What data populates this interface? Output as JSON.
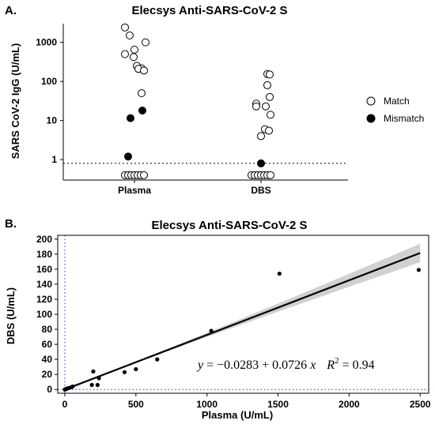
{
  "chart_data": [
    {
      "panel": "A.",
      "type": "scatter",
      "title": "Elecsys Anti-SARS-CoV-2 S",
      "xlabel": "",
      "ylabel": "SARS CoV-2 IgG (U/mL)",
      "yscale": "log",
      "ylim": [
        0.3,
        3000
      ],
      "categories": [
        "Plasma",
        "DBS"
      ],
      "ytick_labels": [
        "1",
        "10",
        "100",
        "1000"
      ],
      "ytick_values": [
        1,
        10,
        100,
        1000
      ],
      "hline": 0.8,
      "legend": {
        "placement": "right",
        "entries": [
          "Match",
          "Mismatch"
        ]
      },
      "series": [
        {
          "name": "Match",
          "points": [
            {
              "category": "Plasma",
              "y": 2400,
              "jitter": -0.12
            },
            {
              "category": "Plasma",
              "y": 1500,
              "jitter": -0.06
            },
            {
              "category": "Plasma",
              "y": 1000,
              "jitter": 0.14
            },
            {
              "category": "Plasma",
              "y": 650,
              "jitter": 0.0
            },
            {
              "category": "Plasma",
              "y": 500,
              "jitter": -0.12
            },
            {
              "category": "Plasma",
              "y": 420,
              "jitter": -0.01
            },
            {
              "category": "Plasma",
              "y": 250,
              "jitter": 0.03
            },
            {
              "category": "Plasma",
              "y": 215,
              "jitter": 0.09
            },
            {
              "category": "Plasma",
              "y": 210,
              "jitter": 0.05
            },
            {
              "category": "Plasma",
              "y": 190,
              "jitter": 0.12
            },
            {
              "category": "Plasma",
              "y": 50,
              "jitter": 0.09
            },
            {
              "category": "Plasma",
              "y": 0.4,
              "jitter": -0.12
            },
            {
              "category": "Plasma",
              "y": 0.4,
              "jitter": -0.08
            },
            {
              "category": "Plasma",
              "y": 0.4,
              "jitter": -0.04
            },
            {
              "category": "Plasma",
              "y": 0.4,
              "jitter": 0.0
            },
            {
              "category": "Plasma",
              "y": 0.4,
              "jitter": 0.04
            },
            {
              "category": "Plasma",
              "y": 0.4,
              "jitter": 0.08
            },
            {
              "category": "Plasma",
              "y": 0.4,
              "jitter": 0.12
            },
            {
              "category": "DBS",
              "y": 155,
              "jitter": 0.08
            },
            {
              "category": "DBS",
              "y": 150,
              "jitter": 0.11
            },
            {
              "category": "DBS",
              "y": 80,
              "jitter": 0.08
            },
            {
              "category": "DBS",
              "y": 40,
              "jitter": 0.11
            },
            {
              "category": "DBS",
              "y": 27,
              "jitter": -0.06
            },
            {
              "category": "DBS",
              "y": 23,
              "jitter": -0.06
            },
            {
              "category": "DBS",
              "y": 23,
              "jitter": 0.06
            },
            {
              "category": "DBS",
              "y": 14,
              "jitter": 0.12
            },
            {
              "category": "DBS",
              "y": 6,
              "jitter": 0.05
            },
            {
              "category": "DBS",
              "y": 5.5,
              "jitter": 0.1
            },
            {
              "category": "DBS",
              "y": 4,
              "jitter": 0.0
            },
            {
              "category": "DBS",
              "y": 0.4,
              "jitter": -0.12
            },
            {
              "category": "DBS",
              "y": 0.4,
              "jitter": -0.08
            },
            {
              "category": "DBS",
              "y": 0.4,
              "jitter": -0.04
            },
            {
              "category": "DBS",
              "y": 0.4,
              "jitter": 0.0
            },
            {
              "category": "DBS",
              "y": 0.4,
              "jitter": 0.04
            },
            {
              "category": "DBS",
              "y": 0.4,
              "jitter": 0.08
            },
            {
              "category": "DBS",
              "y": 0.4,
              "jitter": 0.12
            }
          ]
        },
        {
          "name": "Mismatch",
          "points": [
            {
              "category": "Plasma",
              "y": 18,
              "jitter": 0.1
            },
            {
              "category": "Plasma",
              "y": 11.5,
              "jitter": -0.05
            },
            {
              "category": "Plasma",
              "y": 1.2,
              "jitter": -0.08
            },
            {
              "category": "DBS",
              "y": 0.8,
              "jitter": 0.0
            }
          ]
        }
      ]
    },
    {
      "panel": "B.",
      "type": "scatter",
      "title": "Elecsys Anti-SARS-CoV-2 S",
      "xlabel": "Plasma (U/mL)",
      "ylabel": "DBS (U/mL)",
      "xlim": [
        -50,
        2560
      ],
      "ylim": [
        -5,
        205
      ],
      "xticks": [
        0,
        500,
        1000,
        1500,
        2000,
        2500
      ],
      "yticks": [
        0,
        20,
        40,
        60,
        80,
        100,
        120,
        140,
        160,
        180,
        200
      ],
      "points": [
        {
          "x": 0,
          "y": 0
        },
        {
          "x": 3,
          "y": 0.2
        },
        {
          "x": 8,
          "y": 0.5
        },
        {
          "x": 12,
          "y": 1
        },
        {
          "x": 20,
          "y": 1.5
        },
        {
          "x": 30,
          "y": 2
        },
        {
          "x": 45,
          "y": 3
        },
        {
          "x": 55,
          "y": 4
        },
        {
          "x": 190,
          "y": 6
        },
        {
          "x": 200,
          "y": 24
        },
        {
          "x": 230,
          "y": 6
        },
        {
          "x": 240,
          "y": 15
        },
        {
          "x": 420,
          "y": 23
        },
        {
          "x": 500,
          "y": 27
        },
        {
          "x": 650,
          "y": 40
        },
        {
          "x": 1030,
          "y": 78
        },
        {
          "x": 1510,
          "y": 154
        },
        {
          "x": 2490,
          "y": 159
        }
      ],
      "fit": {
        "intercept": -0.0283,
        "slope": 0.0726,
        "r2": 0.94,
        "x_range": [
          0,
          2500
        ]
      },
      "vline": 0,
      "hline": 0,
      "equation_text": {
        "y": "y",
        "eq": " = −0.0283 + 0.0726",
        "x": "x",
        "r": "R",
        "sup": "2",
        "r2_value": " = 0.94"
      }
    }
  ]
}
